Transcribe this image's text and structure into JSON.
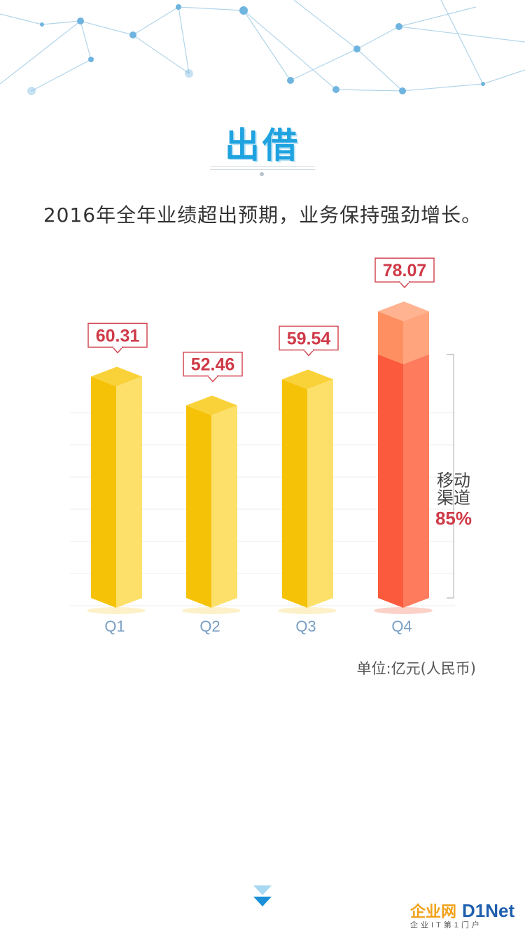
{
  "page": {
    "title": "出借",
    "subtitle": "2016年全年业绩超出预期，业务保持强劲增长。",
    "unit_note": "单位:亿元(人民币)"
  },
  "chart_data": {
    "type": "bar",
    "categories": [
      "Q1",
      "Q2",
      "Q3",
      "Q4"
    ],
    "values": [
      60.31,
      52.46,
      59.54,
      78.07
    ],
    "value_labels": [
      "60.31",
      "52.46",
      "59.54",
      "78.07"
    ],
    "ylim": [
      0,
      80
    ],
    "grid": true,
    "annotation": {
      "category": "Q4",
      "label_line1": "移动",
      "label_line2": "渠道",
      "value_text": "85%",
      "share": 0.85
    },
    "colors": {
      "bar_front": "#f5c208",
      "bar_side": "#fde06a",
      "bar_top": "#f9d23a",
      "q4_front": "#fb5a3c",
      "q4_side": "#fe7b5e",
      "q4_top_front": "#fd8f60",
      "q4_top_side": "#ffa47c",
      "label_text": "#cf3a48",
      "label_border": "#d24a55",
      "tick_text": "#7a9fc4"
    }
  },
  "watermark": {
    "text_main": "企业网",
    "text_brand": "D1Net",
    "text_sub": "企业IT第1门户"
  }
}
